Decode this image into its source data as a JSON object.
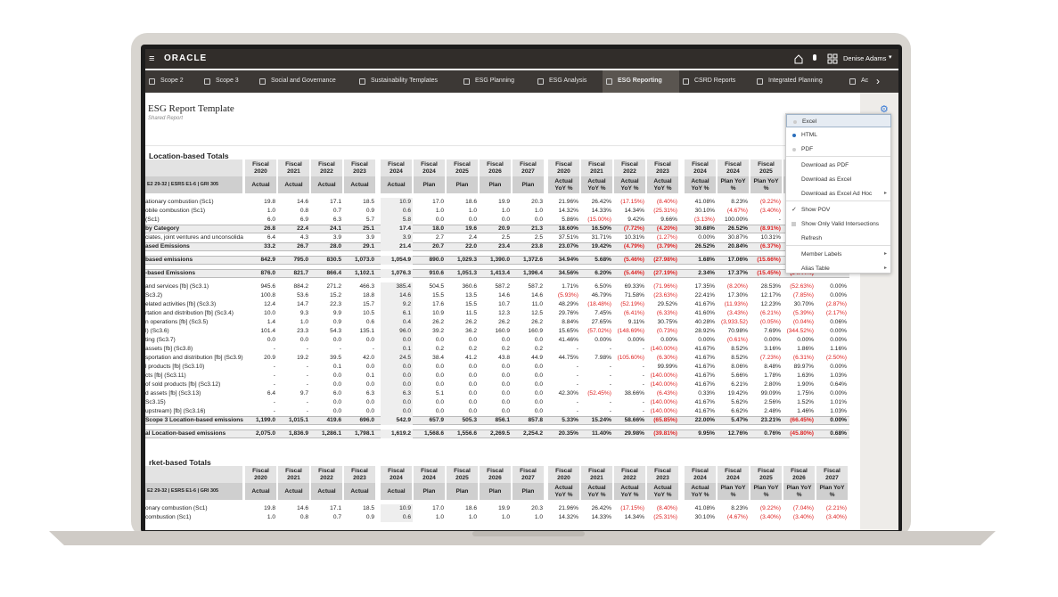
{
  "header": {
    "logo": "ORACLE",
    "user": "Denise Adams"
  },
  "tabs": [
    "Scope 2",
    "Scope 3",
    "Social and Governance",
    "Sustainability Templates",
    "ESG Planning",
    "ESG Analysis",
    "ESG Reporting",
    "CSRD Reports",
    "Integrated Planning",
    "Ac"
  ],
  "report": {
    "title": "ESG Report Template",
    "subtitle": "Shared Report"
  },
  "menu": [
    "Excel",
    "HTML",
    "PDF",
    "Download as PDF",
    "Download as Excel",
    "Download as Excel Ad Hoc",
    "Show POV",
    "Show Only Valid Intersections",
    "Refresh",
    "Member Labels",
    "Alias Table"
  ],
  "columns": [
    {
      "top": "Fiscal 2020",
      "sub": "Actual"
    },
    {
      "top": "Fiscal 2021",
      "sub": "Actual"
    },
    {
      "top": "Fiscal 2022",
      "sub": "Actual"
    },
    {
      "top": "Fiscal 2023",
      "sub": "Actual"
    },
    {
      "top": "Fiscal 2024",
      "sub": "Actual"
    },
    {
      "top": "Fiscal 2024",
      "sub": "Plan"
    },
    {
      "top": "Fiscal 2025",
      "sub": "Plan"
    },
    {
      "top": "Fiscal 2026",
      "sub": "Plan"
    },
    {
      "top": "Fiscal 2027",
      "sub": "Plan"
    },
    {
      "top": "Fiscal 2020",
      "sub": "Actual YoY %"
    },
    {
      "top": "Fiscal 2021",
      "sub": "Actual YoY %"
    },
    {
      "top": "Fiscal 2022",
      "sub": "Actual YoY %"
    },
    {
      "top": "Fiscal 2023",
      "sub": "Actual YoY %"
    },
    {
      "top": "Fiscal 2024",
      "sub": "Actual YoY %"
    },
    {
      "top": "Fiscal 2024",
      "sub": "Plan YoY %"
    },
    {
      "top": "Fiscal 2025",
      "sub": "Plan YoY %"
    },
    {
      "top": "Fiscal 2026",
      "sub": "Plan YoY %"
    },
    {
      "top": "Fiscal 2027",
      "sub": "Plan YoY %"
    }
  ],
  "sections": [
    {
      "title": "Location-based Totals",
      "header_label": "E2 29-32 | ESRS E1-6 | GRI 305",
      "rows": [
        {
          "label": "ationary combustion (Sc1)",
          "cells": [
            "19.8",
            "14.6",
            "17.1",
            "18.5",
            "10.9",
            "17.0",
            "18.6",
            "19.9",
            "20.3",
            "21.96%",
            "26.42%",
            "(17.15%)",
            "(8.40%)",
            "41.08%",
            "8.23%",
            "(9.22%)",
            null,
            null
          ]
        },
        {
          "label": "obile combustion (Sc1)",
          "cells": [
            "1.0",
            "0.8",
            "0.7",
            "0.9",
            "0.6",
            "1.0",
            "1.0",
            "1.0",
            "1.0",
            "14.32%",
            "14.33%",
            "14.34%",
            "(25.31%)",
            "30.10%",
            "(4.67%)",
            "(3.40%)",
            null,
            null
          ]
        },
        {
          "label": "(Sc1)",
          "cells": [
            "6.0",
            "6.9",
            "6.3",
            "5.7",
            "5.8",
            "0.0",
            "0.0",
            "0.0",
            "0.0",
            "5.86%",
            "(15.00%)",
            "9.42%",
            "9.66%",
            "(3.13%)",
            "100.00%",
            "-",
            null,
            null
          ]
        },
        {
          "label": "by Category",
          "cells": [
            "26.8",
            "22.4",
            "24.1",
            "25.1",
            "17.4",
            "18.0",
            "19.6",
            "20.9",
            "21.3",
            "18.60%",
            "16.50%",
            "(7.72%)",
            "(4.20%)",
            "30.68%",
            "26.52%",
            "(8.91%)",
            null,
            null
          ]
        },
        {
          "label": "ciates, joint ventures and unconsolida",
          "cells": [
            "6.4",
            "4.3",
            "3.9",
            "3.9",
            "3.9",
            "2.7",
            "2.4",
            "2.5",
            "2.5",
            "37.51%",
            "31.71%",
            "10.31%",
            "(1.27%)",
            "0.00%",
            "30.87%",
            "10.31%",
            null,
            null
          ]
        },
        {
          "label": "ased Emissions",
          "cells": [
            "33.2",
            "26.7",
            "28.0",
            "29.1",
            "21.4",
            "20.7",
            "22.0",
            "23.4",
            "23.8",
            "23.07%",
            "19.42%",
            "(4.79%)",
            "(3.79%)",
            "26.52%",
            "20.84%",
            "(6.37%)",
            null,
            null
          ]
        },
        {
          "label": "based emissions",
          "cells": [
            "842.9",
            "795.0",
            "830.5",
            "1,073.0",
            "1,054.9",
            "890.0",
            "1,029.3",
            "1,390.0",
            "1,372.6",
            "34.94%",
            "5.68%",
            "(5.46%)",
            "(27.98%)",
            "1.68%",
            "17.06%",
            "(15.66%)",
            null,
            null
          ]
        },
        {
          "label": "-based Emissions",
          "cells": [
            "876.0",
            "821.7",
            "866.4",
            "1,102.1",
            "1,076.3",
            "910.6",
            "1,051.3",
            "1,413.4",
            "1,396.4",
            "34.56%",
            "6.20%",
            "(5.44%)",
            "(27.19%)",
            "2.34%",
            "17.37%",
            "(15.45%)",
            "(34.44%)",
            null
          ]
        },
        {
          "label": "and services [fb] (Sc3.1)",
          "cells": [
            "945.6",
            "884.2",
            "271.2",
            "466.3",
            "385.4",
            "504.5",
            "360.6",
            "587.2",
            "587.2",
            "1.71%",
            "6.50%",
            "69.33%",
            "(71.96%)",
            "17.35%",
            "(8.20%)",
            "28.53%",
            "(52.63%)",
            "0.00%"
          ]
        },
        {
          "label": "Sc3.2)",
          "cells": [
            "100.8",
            "53.6",
            "15.2",
            "18.8",
            "14.6",
            "15.5",
            "13.5",
            "14.6",
            "14.6",
            "(5.93%)",
            "46.79%",
            "71.58%",
            "(23.63%)",
            "22.41%",
            "17.30%",
            "12.17%",
            "(7.85%)",
            "0.00%"
          ]
        },
        {
          "label": "elated activities [fb] (Sc3.3)",
          "cells": [
            "12.4",
            "14.7",
            "22.3",
            "15.7",
            "9.2",
            "17.6",
            "15.5",
            "10.7",
            "11.0",
            "48.29%",
            "(18.48%)",
            "(52.19%)",
            "29.52%",
            "41.67%",
            "(11.93%)",
            "12.23%",
            "30.70%",
            "(2.87%)"
          ]
        },
        {
          "label": "rtation and distribution [fb] (Sc3.4)",
          "cells": [
            "10.0",
            "9.3",
            "9.9",
            "10.5",
            "6.1",
            "10.9",
            "11.5",
            "12.3",
            "12.5",
            "29.76%",
            "7.45%",
            "(6.41%)",
            "(6.33%)",
            "41.60%",
            "(3.43%)",
            "(6.21%)",
            "(5.39%)",
            "(2.17%)"
          ]
        },
        {
          "label": "n operations [fb] (Sc3.5)",
          "cells": [
            "1.4",
            "1.0",
            "0.9",
            "0.6",
            "0.4",
            "26.2",
            "26.2",
            "26.2",
            "26.2",
            "8.84%",
            "27.65%",
            "9.11%",
            "30.75%",
            "40.28%",
            "(3,933.52)",
            "(0.05%)",
            "(0.04%)",
            "0.06%"
          ]
        },
        {
          "label": "l) (Sc3.6)",
          "cells": [
            "101.4",
            "23.3",
            "54.3",
            "135.1",
            "96.0",
            "39.2",
            "36.2",
            "160.9",
            "160.9",
            "15.65%",
            "(57.02%)",
            "(148.69%)",
            "(0.73%)",
            "28.92%",
            "70.98%",
            "7.69%",
            "(344.52%)",
            "0.00%"
          ]
        },
        {
          "label": "ting (Sc3.7)",
          "cells": [
            "0.0",
            "0.0",
            "0.0",
            "0.0",
            "0.0",
            "0.0",
            "0.0",
            "0.0",
            "0.0",
            "41.46%",
            "0.00%",
            "0.00%",
            "0.00%",
            "0.00%",
            "(0.61%)",
            "0.00%",
            "0.00%",
            "0.00%"
          ]
        },
        {
          "label": "assets [fb] (Sc3.8)",
          "cells": [
            "-",
            "-",
            "-",
            "-",
            "0.1",
            "0.2",
            "0.2",
            "0.2",
            "0.2",
            "-",
            "-",
            "-",
            "(140.00%)",
            "41.67%",
            "8.52%",
            "3.16%",
            "1.86%",
            "1.16%"
          ]
        },
        {
          "label": "sportation and distribution [fb] (Sc3.9)",
          "cells": [
            "20.9",
            "19.2",
            "39.5",
            "42.0",
            "24.5",
            "38.4",
            "41.2",
            "43.8",
            "44.9",
            "44.75%",
            "7.98%",
            "(105.60%)",
            "(6.30%)",
            "41.67%",
            "8.52%",
            "(7.23%)",
            "(6.31%)",
            "(2.50%)"
          ]
        },
        {
          "label": "l products [fb] (Sc3.10)",
          "cells": [
            "-",
            "-",
            "0.1",
            "0.0",
            "0.0",
            "0.0",
            "0.0",
            "0.0",
            "0.0",
            "-",
            "-",
            "-",
            "99.99%",
            "41.67%",
            "8.06%",
            "8.48%",
            "89.97%",
            "0.00%"
          ]
        },
        {
          "label": "cts [fb] (Sc3.11)",
          "cells": [
            "-",
            "-",
            "0.0",
            "0.1",
            "0.0",
            "0.0",
            "0.0",
            "0.0",
            "0.0",
            "-",
            "-",
            "-",
            "(140.00%)",
            "41.67%",
            "5.66%",
            "1.78%",
            "1.63%",
            "1.03%"
          ]
        },
        {
          "label": "of sold products [fb] (Sc3.12)",
          "cells": [
            "-",
            "-",
            "0.0",
            "0.0",
            "0.0",
            "0.0",
            "0.0",
            "0.0",
            "0.0",
            "-",
            "-",
            "-",
            "(140.00%)",
            "41.67%",
            "6.21%",
            "2.80%",
            "1.90%",
            "0.64%"
          ]
        },
        {
          "label": "d assets [fb] (Sc3.13)",
          "cells": [
            "6.4",
            "9.7",
            "6.0",
            "6.3",
            "6.3",
            "5.1",
            "0.0",
            "0.0",
            "0.0",
            "42.30%",
            "(52.45%)",
            "38.66%",
            "(6.43%)",
            "0.33%",
            "19.42%",
            "99.09%",
            "1.75%",
            "0.00%"
          ]
        },
        {
          "label": "Sc3.15)",
          "cells": [
            "-",
            "-",
            "0.0",
            "0.0",
            "0.0",
            "0.0",
            "0.0",
            "0.0",
            "0.0",
            "-",
            "-",
            "-",
            "(140.00%)",
            "41.67%",
            "5.62%",
            "2.56%",
            "1.52%",
            "1.01%"
          ]
        },
        {
          "label": "upstream) [fb] (Sc3.16)",
          "cells": [
            "-",
            "-",
            "0.0",
            "0.0",
            "0.0",
            "0.0",
            "0.0",
            "0.0",
            "0.0",
            "-",
            "-",
            "-",
            "(140.00%)",
            "41.67%",
            "6.62%",
            "2.48%",
            "1.46%",
            "1.03%"
          ]
        },
        {
          "label": "Scope 3 Location-based emissions",
          "cells": [
            "1,199.0",
            "1,015.1",
            "419.6",
            "696.0",
            "542.9",
            "657.9",
            "505.3",
            "856.1",
            "857.8",
            "5.33%",
            "15.24%",
            "58.66%",
            "(65.85%)",
            "22.00%",
            "5.47%",
            "23.21%",
            "(66.45%)",
            "0.00%"
          ]
        },
        {
          "label": "al Location-based emissions",
          "cells": [
            "2,075.0",
            "1,836.9",
            "1,286.1",
            "1,798.1",
            "1,619.2",
            "1,568.6",
            "1,556.6",
            "2,269.5",
            "2,254.2",
            "20.35%",
            "11.40%",
            "29.98%",
            "(39.81%)",
            "9.95%",
            "12.76%",
            "0.76%",
            "(45.80%)",
            "0.68%"
          ]
        }
      ]
    },
    {
      "title": "rket-based Totals",
      "header_label": "E2 29-32 | ESRS E1-6 | GRI 305",
      "rows": [
        {
          "label": "onary combustion (Sc1)",
          "cells": [
            "19.8",
            "14.6",
            "17.1",
            "18.5",
            "10.9",
            "17.0",
            "18.6",
            "19.9",
            "20.3",
            "21.96%",
            "26.42%",
            "(17.15%)",
            "(8.40%)",
            "41.08%",
            "8.23%",
            "(9.22%)",
            "(7.04%)",
            "(2.21%)"
          ]
        },
        {
          "label": "combustion (Sc1)",
          "cells": [
            "1.0",
            "0.8",
            "0.7",
            "0.9",
            "0.6",
            "1.0",
            "1.0",
            "1.0",
            "1.0",
            "14.32%",
            "14.33%",
            "14.34%",
            "(25.31%)",
            "30.10%",
            "(4.67%)",
            "(3.40%)",
            "(3.40%)",
            "(3.40%)"
          ]
        }
      ]
    }
  ]
}
